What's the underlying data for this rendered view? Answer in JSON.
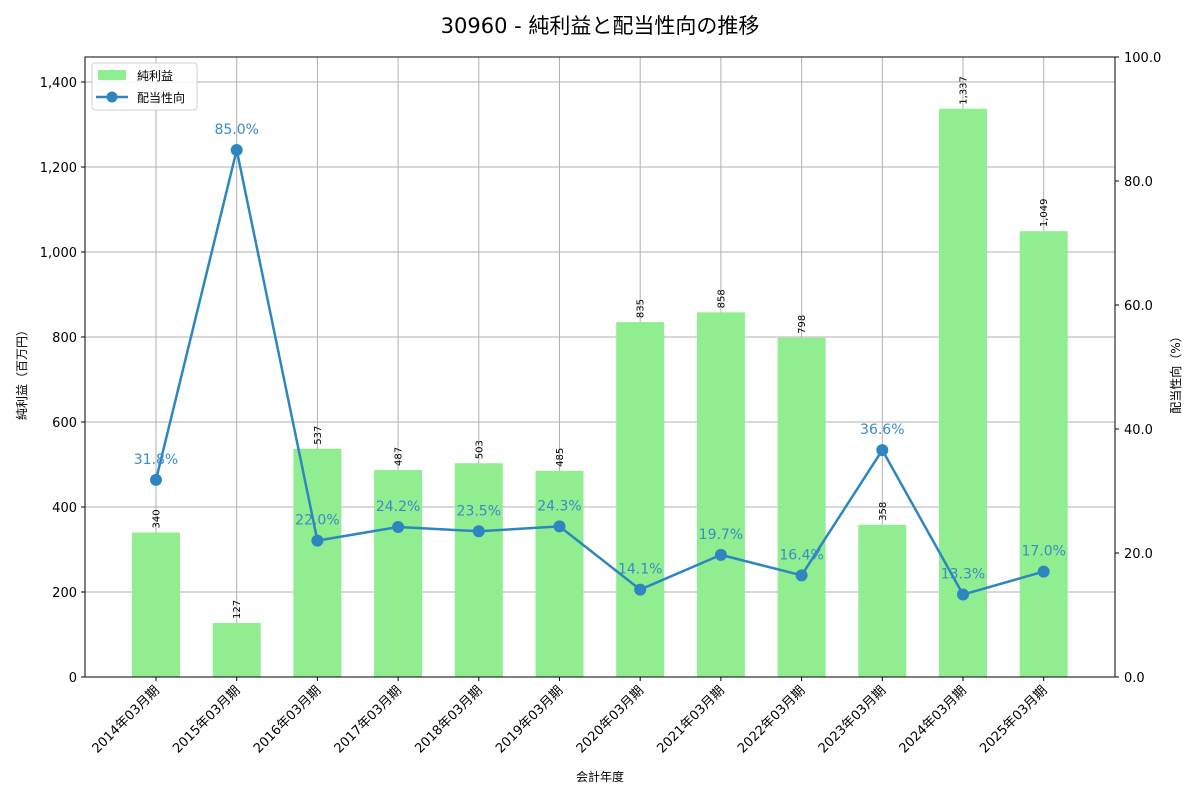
{
  "chart_data": {
    "type": "bar+line",
    "title": "30960 - 純利益と配当性向の推移",
    "xlabel": "会計年度",
    "ylabel": "純利益（百万円）",
    "y2label": "配当性向（%）",
    "categories": [
      "2014年03月期",
      "2015年03月期",
      "2016年03月期",
      "2017年03月期",
      "2018年03月期",
      "2019年03月期",
      "2020年03月期",
      "2021年03月期",
      "2022年03月期",
      "2023年03月期",
      "2024年03月期",
      "2025年03月期"
    ],
    "series": [
      {
        "name": "純利益",
        "type": "bar",
        "axis": "left",
        "color": "#90ee90",
        "values": [
          340,
          127,
          537,
          487,
          503,
          485,
          835,
          858,
          798,
          358,
          1337,
          1049
        ],
        "labels": [
          "340",
          "127",
          "537",
          "487",
          "503",
          "485",
          "835",
          "858",
          "798",
          "358",
          "1,337",
          "1,049"
        ]
      },
      {
        "name": "配当性向",
        "type": "line",
        "axis": "right",
        "color": "#2e86c1",
        "values": [
          31.8,
          85.0,
          22.0,
          24.2,
          23.5,
          24.3,
          14.1,
          19.7,
          16.4,
          36.6,
          13.3,
          17.0
        ],
        "labels": [
          "31.8%",
          "85.0%",
          "22.0%",
          "24.2%",
          "23.5%",
          "24.3%",
          "14.1%",
          "19.7%",
          "16.4%",
          "36.6%",
          "13.3%",
          "17.0%"
        ]
      }
    ],
    "ylim": [
      0,
      1460
    ],
    "y2lim": [
      0,
      100
    ],
    "yticks": [
      0,
      200,
      400,
      600,
      800,
      1000,
      1200,
      1400
    ],
    "ytick_labels": [
      "0",
      "200",
      "400",
      "600",
      "800",
      "1,000",
      "1,200",
      "1,400"
    ],
    "y2ticks": [
      0,
      20,
      40,
      60,
      80,
      100
    ],
    "y2tick_labels": [
      "0.0",
      "20.0",
      "40.0",
      "60.0",
      "80.0",
      "100.0"
    ],
    "grid": true,
    "legend_position": "upper left",
    "legend": [
      "純利益",
      "配当性向"
    ]
  },
  "colors": {
    "bar": "#90ee90",
    "line": "#2e86c1",
    "label_pct": "#3a8bc8",
    "grid": "#b0b0b0"
  }
}
